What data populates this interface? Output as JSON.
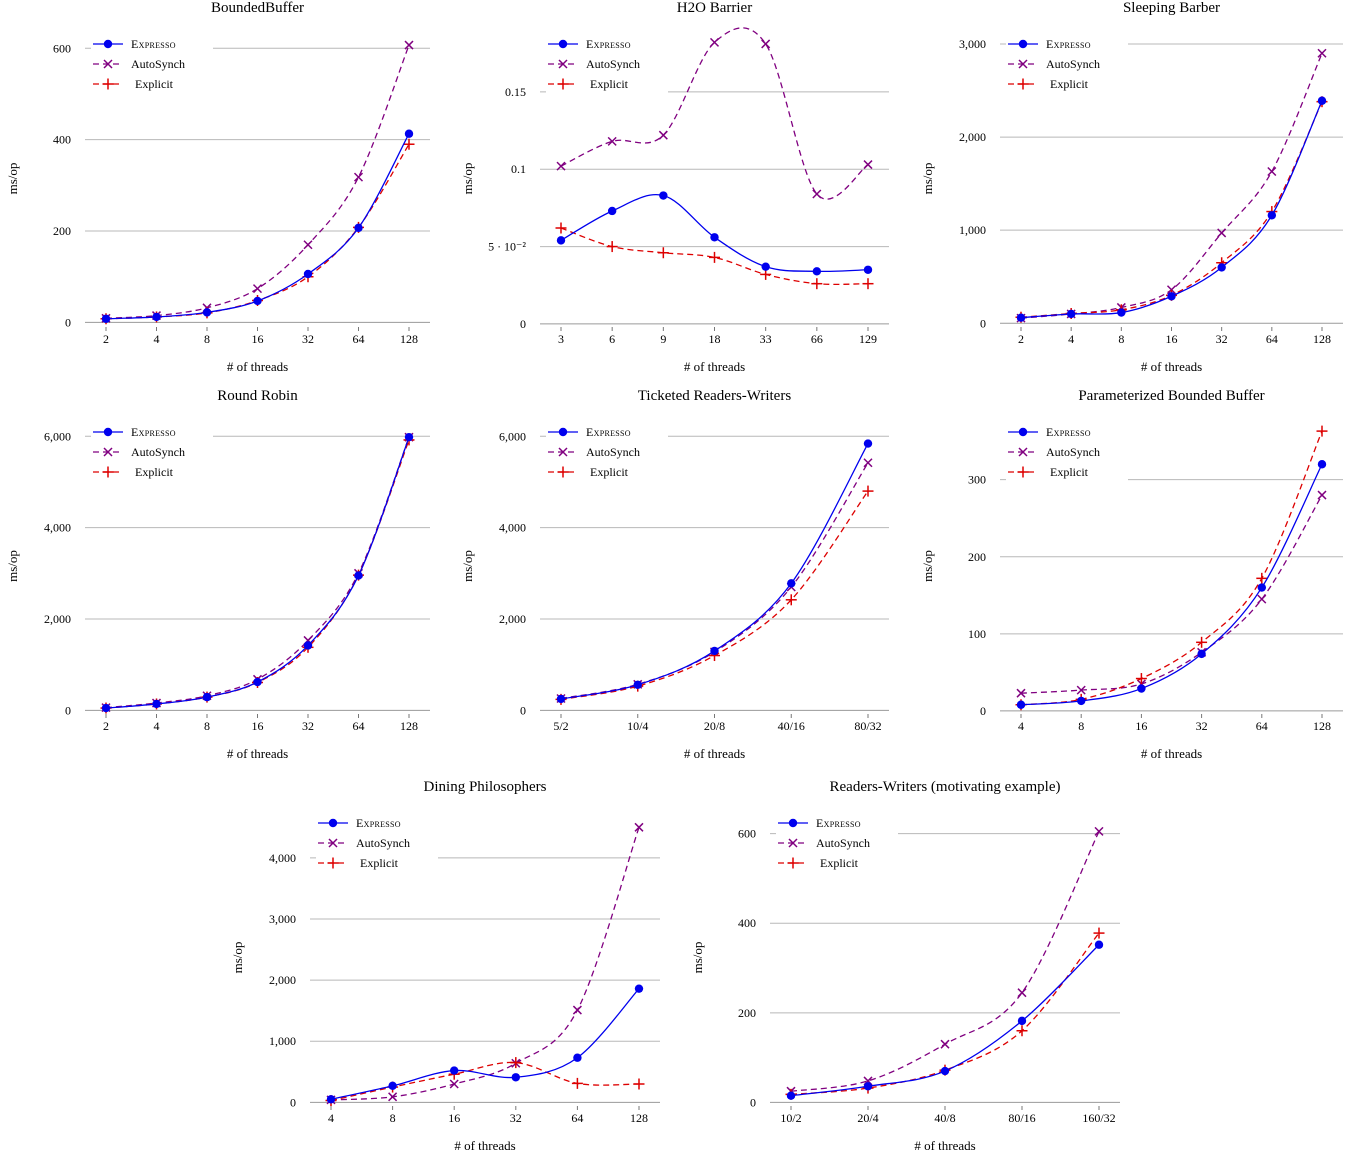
{
  "legend_labels": {
    "expresso": "Expresso",
    "autosynch": "AutoSynch",
    "explicit": "Explicit"
  },
  "colors": {
    "expresso": "#0000ee",
    "autosynch": "#800080",
    "explicit": "#dd0000",
    "grid": "#b8b8b8"
  },
  "chart_data": [
    {
      "type": "line",
      "title": "BoundedBuffer",
      "xlabel": "# of threads",
      "ylabel": "ms/op",
      "categories": [
        "2",
        "4",
        "8",
        "16",
        "32",
        "64",
        "128"
      ],
      "yticks": [
        0,
        200,
        400,
        600
      ],
      "ytick_labels": [
        "0",
        "200",
        "400",
        "600"
      ],
      "ylim": [
        -10,
        640
      ],
      "legend": "top-left",
      "grid": true,
      "series": [
        {
          "name": "Expresso",
          "values": [
            8,
            12,
            22,
            47,
            106,
            207,
            413
          ]
        },
        {
          "name": "AutoSynch",
          "values": [
            9,
            15,
            32,
            74,
            170,
            318,
            607
          ]
        },
        {
          "name": "Explicit",
          "values": [
            8,
            12,
            21,
            48,
            100,
            208,
            390
          ]
        }
      ]
    },
    {
      "type": "line",
      "title": "H2O Barrier",
      "xlabel": "# of threads",
      "ylabel": "ms/op",
      "categories": [
        "3",
        "6",
        "9",
        "18",
        "33",
        "66",
        "129"
      ],
      "yticks": [
        0,
        0.05,
        0.1,
        0.15
      ],
      "ytick_labels": [
        "0",
        "5 · 10⁻²",
        "0.1",
        "0.15"
      ],
      "ylim": [
        -0.002,
        0.19
      ],
      "legend": "top-left",
      "grid": true,
      "series": [
        {
          "name": "Expresso",
          "values": [
            0.054,
            0.073,
            0.083,
            0.056,
            0.037,
            0.034,
            0.035
          ]
        },
        {
          "name": "AutoSynch",
          "values": [
            0.102,
            0.118,
            0.122,
            0.182,
            0.181,
            0.084,
            0.103
          ]
        },
        {
          "name": "Explicit",
          "values": [
            0.062,
            0.05,
            0.046,
            0.043,
            0.032,
            0.026,
            0.026
          ]
        }
      ]
    },
    {
      "type": "line",
      "title": "Sleeping Barber",
      "xlabel": "# of threads",
      "ylabel": "ms/op",
      "categories": [
        "2",
        "4",
        "8",
        "16",
        "32",
        "64",
        "128"
      ],
      "yticks": [
        0,
        1000,
        2000,
        3000
      ],
      "ytick_labels": [
        "0",
        "1,000",
        "2,000",
        "3,000"
      ],
      "ylim": [
        -40,
        3150
      ],
      "legend": "top-left",
      "grid": true,
      "series": [
        {
          "name": "Expresso",
          "values": [
            60,
            100,
            115,
            290,
            600,
            1160,
            2390
          ]
        },
        {
          "name": "AutoSynch",
          "values": [
            55,
            100,
            170,
            360,
            970,
            1630,
            2900
          ]
        },
        {
          "name": "Explicit",
          "values": [
            65,
            105,
            145,
            300,
            650,
            1200,
            2380
          ]
        }
      ]
    },
    {
      "type": "line",
      "title": "Round Robin",
      "xlabel": "# of threads",
      "ylabel": "ms/op",
      "categories": [
        "2",
        "4",
        "8",
        "16",
        "32",
        "64",
        "128"
      ],
      "yticks": [
        0,
        2000,
        4000,
        6000
      ],
      "ytick_labels": [
        "0",
        "2,000",
        "4,000",
        "6,000"
      ],
      "ylim": [
        -80,
        6400
      ],
      "legend": "top-left",
      "grid": true,
      "series": [
        {
          "name": "Expresso",
          "values": [
            50,
            140,
            290,
            620,
            1420,
            2950,
            5980
          ]
        },
        {
          "name": "AutoSynch",
          "values": [
            60,
            160,
            320,
            680,
            1530,
            3000,
            5980
          ]
        },
        {
          "name": "Explicit",
          "values": [
            50,
            140,
            290,
            610,
            1380,
            2960,
            5920
          ]
        }
      ]
    },
    {
      "type": "line",
      "title": "Ticketed Readers-Writers",
      "xlabel": "# of threads",
      "ylabel": "ms/op",
      "categories": [
        "5/2",
        "10/4",
        "20/8",
        "40/16",
        "80/32"
      ],
      "yticks": [
        0,
        2000,
        4000,
        6000
      ],
      "ytick_labels": [
        "0",
        "2,000",
        "4,000",
        "6,000"
      ],
      "ylim": [
        -80,
        6400
      ],
      "legend": "top-left",
      "grid": true,
      "series": [
        {
          "name": "Expresso",
          "values": [
            250,
            560,
            1300,
            2780,
            5840
          ]
        },
        {
          "name": "AutoSynch",
          "values": [
            260,
            570,
            1280,
            2700,
            5420
          ]
        },
        {
          "name": "Explicit",
          "values": [
            240,
            530,
            1200,
            2420,
            4800
          ]
        }
      ]
    },
    {
      "type": "line",
      "title": "Parameterized Bounded Buffer",
      "xlabel": "# of threads",
      "ylabel": "ms/op",
      "categories": [
        "4",
        "8",
        "16",
        "32",
        "64",
        "128"
      ],
      "yticks": [
        0,
        100,
        200,
        300
      ],
      "ytick_labels": [
        "0",
        "100",
        "200",
        "300"
      ],
      "ylim": [
        -4,
        380
      ],
      "legend": "top-left",
      "grid": true,
      "series": [
        {
          "name": "Expresso",
          "values": [
            8,
            13,
            29,
            74,
            160,
            320
          ]
        },
        {
          "name": "AutoSynch",
          "values": [
            23,
            27,
            35,
            76,
            145,
            280
          ]
        },
        {
          "name": "Explicit",
          "values": [
            8,
            15,
            42,
            89,
            172,
            363
          ]
        }
      ]
    },
    {
      "type": "line",
      "title": "Dining Philosophers",
      "xlabel": "# of threads",
      "ylabel": "ms/op",
      "categories": [
        "4",
        "8",
        "16",
        "32",
        "64",
        "128"
      ],
      "yticks": [
        0,
        1000,
        2000,
        3000,
        4000
      ],
      "ytick_labels": [
        "0",
        "1,000",
        "2,000",
        "3,000",
        "4,000"
      ],
      "ylim": [
        -60,
        4800
      ],
      "legend": "top-left",
      "grid": true,
      "series": [
        {
          "name": "Expresso",
          "values": [
            50,
            270,
            520,
            410,
            730,
            1860
          ]
        },
        {
          "name": "AutoSynch",
          "values": [
            40,
            90,
            300,
            640,
            1510,
            4500
          ]
        },
        {
          "name": "Explicit",
          "values": [
            30,
            250,
            460,
            650,
            310,
            300
          ]
        }
      ]
    },
    {
      "type": "line",
      "title": "Readers-Writers (motivating example)",
      "xlabel": "# of threads",
      "ylabel": "ms/op",
      "categories": [
        "10/2",
        "20/4",
        "40/8",
        "80/16",
        "160/32"
      ],
      "yticks": [
        0,
        200,
        400,
        600
      ],
      "ytick_labels": [
        "0",
        "200",
        "400",
        "600"
      ],
      "ylim": [
        -8,
        655
      ],
      "legend": "top-left",
      "grid": true,
      "series": [
        {
          "name": "Expresso",
          "values": [
            15,
            36,
            70,
            182,
            352
          ]
        },
        {
          "name": "AutoSynch",
          "values": [
            25,
            48,
            130,
            245,
            605
          ]
        },
        {
          "name": "Explicit",
          "values": [
            18,
            32,
            72,
            160,
            378
          ]
        }
      ]
    }
  ]
}
